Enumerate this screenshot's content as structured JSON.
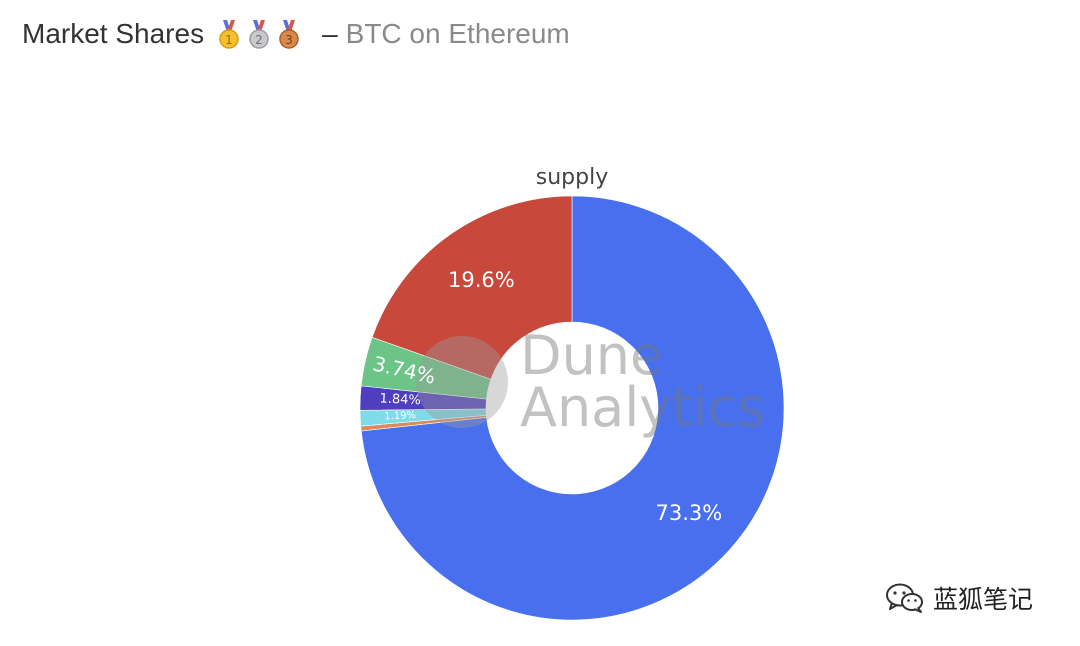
{
  "header": {
    "title": "Market Shares",
    "medals": [
      "gold-medal-icon",
      "silver-medal-icon",
      "bronze-medal-icon"
    ],
    "separator": "–",
    "subtitle": "BTC on Ethereum"
  },
  "watermark": {
    "line1": "Dune",
    "line2": "Analytics"
  },
  "brand": {
    "icon": "wechat-icon",
    "text": "蓝狐笔记"
  },
  "chart_data": {
    "type": "pie",
    "title": "supply",
    "donut": true,
    "slices": [
      {
        "value": 73.3,
        "label": "73.3%",
        "color": "#4870ee"
      },
      {
        "value": 0.37,
        "label": "",
        "color": "#d98a5f"
      },
      {
        "value": 1.19,
        "label": "1.19%",
        "color": "#7fdbe8"
      },
      {
        "value": 1.84,
        "label": "1.84%",
        "color": "#4f3ec0"
      },
      {
        "value": 3.74,
        "label": "3.74%",
        "color": "#6cc486"
      },
      {
        "value": 19.6,
        "label": "19.6%",
        "color": "#c8493c"
      }
    ]
  }
}
